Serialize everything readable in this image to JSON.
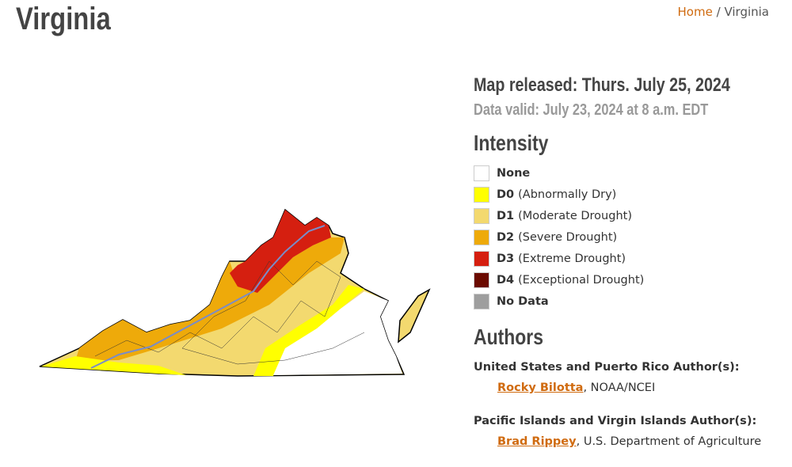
{
  "header": {
    "title": "Virginia",
    "breadcrumb": [
      "Home",
      "/",
      "Virginia"
    ]
  },
  "map_info": {
    "released": "Map released: Thurs. July 25, 2024",
    "valid": "Data valid: July 23, 2024 at 8 a.m. EDT"
  },
  "legend": {
    "title": "Intensity",
    "items": [
      {
        "code": "None",
        "desc": null,
        "color": "#ffffff"
      },
      {
        "code": "D0",
        "desc": "(Abnormally Dry)",
        "color": "#ffff00"
      },
      {
        "code": "D1",
        "desc": "(Moderate Drought)",
        "color": "#f3d96f"
      },
      {
        "code": "D2",
        "desc": "(Severe Drought)",
        "color": "#eeaa0a"
      },
      {
        "code": "D3",
        "desc": "(Extreme Drought)",
        "color": "#d51f10"
      },
      {
        "code": "D4",
        "desc": "(Exceptional Drought)",
        "color": "#6b0a00"
      },
      {
        "code": "No Data",
        "desc": null,
        "color": "#9e9e9e"
      }
    ]
  },
  "authors": {
    "title": "Authors",
    "groups": [
      {
        "heading": "United States and Puerto Rico Author(s):",
        "name": "Rocky Bilotta",
        "affiliation": ", NOAA/NCEI"
      },
      {
        "heading": "Pacific Islands and Virgin Islands Author(s):",
        "name": "Brad Rippey",
        "affiliation": ", U.S. Department of Agriculture"
      }
    ]
  }
}
